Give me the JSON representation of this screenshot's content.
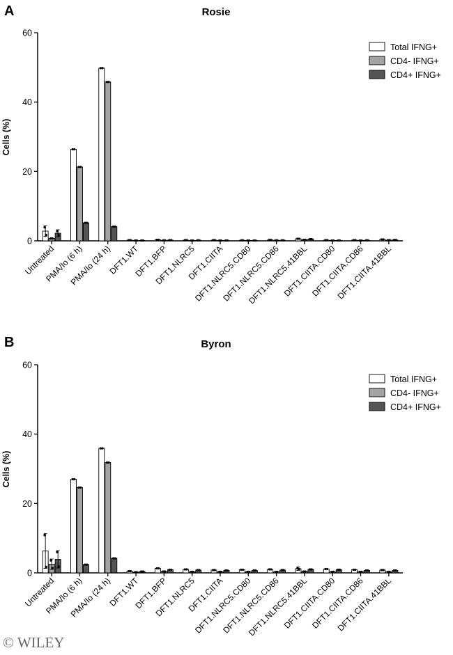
{
  "colors": {
    "total": "#ffffff",
    "cd4neg": "#a3a3a3",
    "cd4pos": "#555555",
    "axis": "#000000"
  },
  "watermark": "© WILEY",
  "chart_data": [
    {
      "type": "bar",
      "panel_label": "A",
      "title": "Rosie",
      "xlabel": "",
      "ylabel": "Cells (%)",
      "ylim": [
        0,
        60
      ],
      "yticks": [
        "0",
        "20",
        "40",
        "60"
      ],
      "grid": false,
      "legend_position": "top-right",
      "categories": [
        "Untreated",
        "PMA/Io (6 h)",
        "PMA/Io (24 h)",
        "DFT1.WT",
        "DFT1.BFP",
        "DFT1.NLRC5",
        "DFT1.CIITA",
        "DFT1.NLRC5.CD80",
        "DFT1.NLRC5.CD86",
        "DFT1.NLRC5.41BBL",
        "DFT1.CIITA.CD80",
        "DFT1.CIITA.CD86",
        "DFT1.CIITA.41BBL"
      ],
      "series": [
        {
          "name": "Total IFNG+",
          "values": [
            2.8,
            26.4,
            49.8,
            0.2,
            0.3,
            0.2,
            0.2,
            0.15,
            0.25,
            0.6,
            0.2,
            0.2,
            0.4
          ],
          "error": [
            1.5,
            0.2,
            0.2,
            0.05,
            0.1,
            0.05,
            0.05,
            0.05,
            0.05,
            0.15,
            0.05,
            0.05,
            0.1
          ]
        },
        {
          "name": "CD4- IFNG+",
          "values": [
            0.7,
            21.3,
            45.8,
            0.1,
            0.15,
            0.1,
            0.1,
            0.1,
            0.15,
            0.3,
            0.1,
            0.1,
            0.2
          ],
          "error": [
            0.2,
            0.2,
            0.2,
            0.05,
            0.05,
            0.05,
            0.05,
            0.05,
            0.05,
            0.1,
            0.05,
            0.05,
            0.05
          ]
        },
        {
          "name": "CD4+ IFNG+",
          "values": [
            2.2,
            5.2,
            4.1,
            0.1,
            0.2,
            0.15,
            0.1,
            0.1,
            0.15,
            0.5,
            0.1,
            0.15,
            0.25
          ],
          "error": [
            1.0,
            0.1,
            0.1,
            0.05,
            0.05,
            0.05,
            0.05,
            0.05,
            0.05,
            0.1,
            0.05,
            0.05,
            0.05
          ]
        }
      ]
    },
    {
      "type": "bar",
      "panel_label": "B",
      "title": "Byron",
      "xlabel": "",
      "ylabel": "Cells (%)",
      "ylim": [
        0,
        60
      ],
      "yticks": [
        "0",
        "20",
        "40",
        "60"
      ],
      "grid": false,
      "legend_position": "top-right",
      "categories": [
        "Untreated",
        "PMA/Io (6 h)",
        "PMA/Io (24 h)",
        "DFT1.WT",
        "DFT1.BFP",
        "DFT1.NLRC5",
        "DFT1.CIITA",
        "DFT1.NLRC5.CD80",
        "DFT1.NLRC5.CD86",
        "DFT1.NLRC5.41BBL",
        "DFT1.CIITA.CD80",
        "DFT1.CIITA.CD86",
        "DFT1.CIITA.41BBL"
      ],
      "series": [
        {
          "name": "Total IFNG+",
          "values": [
            6.3,
            27.0,
            35.9,
            0.5,
            1.3,
            1.0,
            0.8,
            0.9,
            1.0,
            1.2,
            1.1,
            0.9,
            0.8
          ],
          "error": [
            5.0,
            0.2,
            0.2,
            0.1,
            0.2,
            0.2,
            0.2,
            0.2,
            0.2,
            0.5,
            0.2,
            0.2,
            0.2
          ]
        },
        {
          "name": "CD4- IFNG+",
          "values": [
            2.5,
            24.6,
            31.8,
            0.2,
            0.4,
            0.3,
            0.3,
            0.3,
            0.3,
            0.4,
            0.3,
            0.3,
            0.3
          ],
          "error": [
            1.5,
            0.2,
            0.2,
            0.05,
            0.1,
            0.1,
            0.1,
            0.1,
            0.1,
            0.1,
            0.1,
            0.1,
            0.1
          ]
        },
        {
          "name": "CD4+ IFNG+",
          "values": [
            3.9,
            2.4,
            4.2,
            0.4,
            0.9,
            0.8,
            0.7,
            0.7,
            0.8,
            1.0,
            0.9,
            0.7,
            0.7
          ],
          "error": [
            2.5,
            0.1,
            0.1,
            0.1,
            0.2,
            0.2,
            0.1,
            0.1,
            0.1,
            0.3,
            0.1,
            0.1,
            0.1
          ]
        }
      ]
    }
  ]
}
